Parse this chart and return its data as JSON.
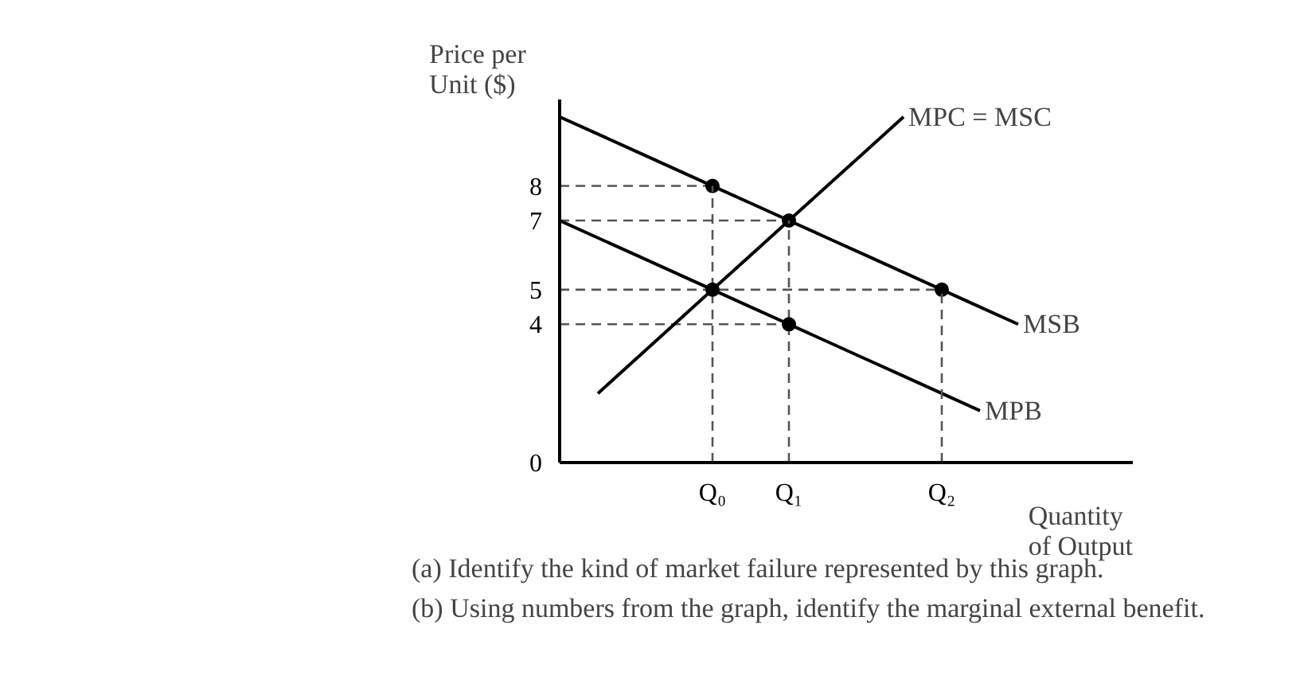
{
  "chart_data": {
    "type": "line",
    "xlabel": "Quantity\nof Output",
    "ylabel": "Price per\nUnit ($)",
    "ylim": [
      0,
      10.5
    ],
    "yticks": [
      0,
      4,
      5,
      7,
      8
    ],
    "grid": false,
    "categories": [
      null,
      null,
      null,
      null,
      "Q₀",
      null,
      "Q₁",
      null,
      null,
      null,
      "Q₂",
      null,
      null,
      null,
      null,
      null
    ],
    "series": [
      {
        "line_style": "dashed",
        "color": "#555555",
        "values": [
          8,
          8,
          8,
          8,
          8,
          null,
          null,
          null,
          null,
          null,
          null,
          null,
          null,
          null,
          null,
          null
        ]
      },
      {
        "line_style": "dashed",
        "color": "#555555",
        "values": [
          7,
          7,
          7,
          7,
          7,
          7,
          7,
          null,
          null,
          null,
          null,
          null,
          null,
          null,
          null,
          null
        ]
      },
      {
        "line_style": "dashed",
        "color": "#555555",
        "values": [
          5,
          5,
          5,
          5,
          5,
          5,
          5,
          5,
          5,
          5,
          5,
          null,
          null,
          null,
          null,
          null
        ]
      },
      {
        "line_style": "dashed",
        "color": "#555555",
        "values": [
          4,
          4,
          4,
          4,
          4,
          4,
          4,
          null,
          null,
          null,
          null,
          null,
          null,
          null,
          null,
          null
        ]
      },
      {
        "line_style": "solid",
        "name": "MSB",
        "color": "#000000",
        "values": [
          10,
          9.5,
          9,
          8.5,
          8,
          7.5,
          7,
          6.5,
          6,
          5.5,
          5,
          4.5,
          4,
          null,
          null,
          null
        ]
      },
      {
        "line_style": "solid",
        "name": "MPB",
        "color": "#000000",
        "values": [
          7,
          6.5,
          6,
          5.5,
          5,
          4.5,
          4,
          3.5,
          3,
          2.5,
          2,
          1.5,
          null,
          null,
          null,
          null
        ]
      },
      {
        "line_style": "solid",
        "name": "MPC = MSC",
        "color": "#000000",
        "values": [
          null,
          2,
          3,
          4,
          5,
          6,
          7,
          8,
          9,
          10,
          null,
          null,
          null,
          null,
          null,
          null
        ]
      },
      {
        "type": "scatter",
        "marker": "circle",
        "color": "#000000",
        "values": [
          null,
          null,
          null,
          null,
          8,
          null,
          7,
          null,
          null,
          null,
          5,
          null,
          null,
          null,
          null,
          null
        ],
        "errors": [
          null,
          null,
          null,
          null,
          [
            0,
            8
          ],
          null,
          [
            0,
            7
          ],
          null,
          null,
          null,
          [
            0,
            5
          ],
          null,
          null,
          null,
          null,
          null
        ]
      },
      {
        "type": "scatter",
        "marker": "circle",
        "color": "#000000",
        "values": [
          null,
          null,
          null,
          null,
          5,
          null,
          4,
          null,
          null,
          null,
          null,
          null,
          null,
          null,
          null,
          null
        ]
      }
    ],
    "annotations": [
      "(a) Identify the kind of market failure represented by this graph.",
      "(b) Using numbers from the graph, identify the marginal external benefit."
    ]
  }
}
